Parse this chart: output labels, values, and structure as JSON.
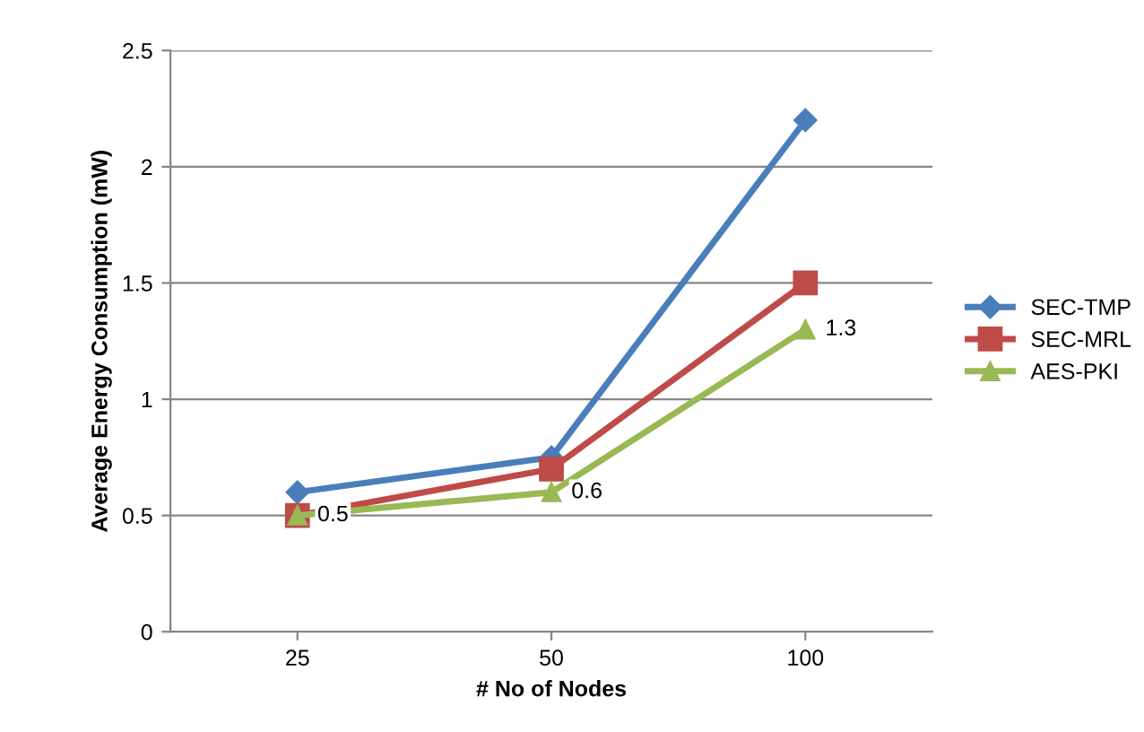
{
  "chart_data": {
    "type": "line",
    "xlabel": "# No of Nodes",
    "ylabel": "Average Energy Consumption (mW)",
    "categories": [
      "25",
      "50",
      "100"
    ],
    "series": [
      {
        "name": "SEC-TMP",
        "color": "#4a7ebb",
        "marker": "diamond",
        "values": [
          0.6,
          0.75,
          2.2
        ]
      },
      {
        "name": "SEC-MRL",
        "color": "#be4b48",
        "marker": "square",
        "values": [
          0.5,
          0.7,
          1.5
        ]
      },
      {
        "name": "AES-PKI",
        "color": "#98b954",
        "marker": "triangle",
        "values": [
          0.5,
          0.6,
          1.3
        ],
        "value_labels": [
          "0.5",
          "0.6",
          "1.3"
        ]
      }
    ],
    "ylim": [
      0,
      2.5
    ],
    "yticks": [
      0,
      0.5,
      1,
      1.5,
      2,
      2.5
    ],
    "grid": "y",
    "legend": "right",
    "line_style": "solid"
  }
}
